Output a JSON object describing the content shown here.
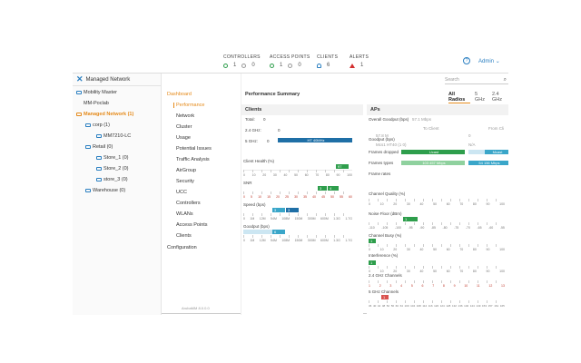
{
  "header": {
    "stats": [
      {
        "label": "CONTROLLERS",
        "ok": "1",
        "warn": "0"
      },
      {
        "label": "ACCESS POINTS",
        "ok": "1",
        "warn": "0"
      },
      {
        "label": "CLIENTS",
        "ok": "6"
      },
      {
        "label": "ALERTS",
        "ok": "1"
      }
    ],
    "help": "?",
    "user": "Admin"
  },
  "tree": {
    "title": "Managed Network",
    "nodes": [
      {
        "label": "Mobility Master"
      },
      {
        "label": "MM-Poclab"
      },
      {
        "label": "Managed Network (1)"
      },
      {
        "label": "corp (1)"
      },
      {
        "label": "MM7210-LC"
      },
      {
        "label": "Retail (0)"
      },
      {
        "label": "Store_1 (0)"
      },
      {
        "label": "Store_2 (0)"
      },
      {
        "label": "store_3 (0)"
      },
      {
        "label": "Warehouse (0)"
      }
    ]
  },
  "nav": {
    "root": "Dashboard",
    "items": [
      "Performance",
      "Network",
      "Cluster",
      "Usage",
      "Potential Issues",
      "Traffic Analysis",
      "AirGroup",
      "Security",
      "UCC",
      "Controllers",
      "WLANs",
      "Access Points",
      "Clients"
    ],
    "config": "Configuration",
    "version": "ArubaMM 8.0.0.0"
  },
  "main": {
    "search_placeholder": "Search",
    "title": "Performance Summary",
    "tabs": [
      "All Radios",
      "5 GHz",
      "2.4 GHz"
    ],
    "clients": {
      "title": "Clients",
      "total_label": "Total:",
      "total_value": "0",
      "band24_label": "2.4 GHz:",
      "band24_value": "0",
      "band5_label": "5 GHz:",
      "band5_value": "0",
      "band5_bar": "HT 40MHz",
      "health_label": "Client Health (%)",
      "health_bar": "97",
      "health_ticks": [
        "0",
        "10",
        "20",
        "30",
        "40",
        "50",
        "60",
        "70",
        "80",
        "90",
        "100"
      ],
      "snr_label": "SNR",
      "snr_bar_a": "3",
      "snr_bar_b": "4",
      "snr_ticks": [
        "0",
        "5",
        "10",
        "15",
        "20",
        "25",
        "30",
        "35",
        "40",
        "45",
        "50",
        "55",
        "60"
      ],
      "speed_label": "Speed (bps)",
      "speed_bar_a": "3",
      "speed_bar_b": "3",
      "speed_ticks": [
        "0",
        "1M",
        "12M",
        "54M",
        "108M",
        "150M",
        "300M",
        "600M",
        "1.3G",
        "1.7G"
      ],
      "goodput_label": "Goodput (bps)",
      "goodput_bar": "6",
      "goodput_ticks": [
        "0",
        "1M",
        "12M",
        "54M",
        "108M",
        "150M",
        "300M",
        "600M",
        "1.3G",
        "1.7G"
      ]
    },
    "aps": {
      "title": "APs",
      "overall_label": "Overall Goodput (bps)",
      "overall_value": "57.1 Mbps",
      "to_client": "To Client",
      "from_client": "From Cli",
      "goodput_label": "Goodput (bps)",
      "goodput_values": [
        "57.8 M",
        "0"
      ],
      "mcs_values": [
        "Mcs1 HT40 (1 0)",
        "N/A"
      ],
      "frames_dropped": "Frames dropped",
      "frames_types": "Frames types",
      "frames_rates": "Frame rates",
      "bar_unicast": "Ucast",
      "bar_mcast": "Mcast",
      "bar_rate": "103 457 Mbps",
      "bar_rate2": "54 156 Mbps",
      "channel_quality": "Channel Quality (%)",
      "cq_ticks": [
        "0",
        "10",
        "20",
        "30",
        "40",
        "50",
        "60",
        "70",
        "80",
        "90",
        "100"
      ],
      "noise_floor": "Noise Floor (dBm)",
      "noise_bar": "1",
      "noise_ticks": [
        "-110",
        "-105",
        "-100",
        "-95",
        "-90",
        "-85",
        "-80",
        "-75",
        "-70",
        "-65",
        "-60",
        "-55"
      ],
      "channel_busy": "Channel Busy (%)",
      "busy_bar": "1",
      "busy_ticks": [
        "0",
        "10",
        "20",
        "30",
        "40",
        "50",
        "60",
        "70",
        "80",
        "90",
        "100"
      ],
      "interference": "Interference (%)",
      "interf_bar": "1",
      "interf_ticks": [
        "0",
        "10",
        "20",
        "30",
        "40",
        "50",
        "60",
        "70",
        "80",
        "90",
        "100"
      ],
      "ch24": "2.4 GHz Channels",
      "ch24_ticks": [
        "1",
        "2",
        "3",
        "4",
        "5",
        "6",
        "7",
        "8",
        "9",
        "10",
        "11",
        "12",
        "13"
      ],
      "ch5": "5 GHz Channels",
      "ch5_ticks": [
        "36",
        "40",
        "44",
        "48",
        "52",
        "56",
        "60",
        "64",
        "100",
        "104",
        "108",
        "112",
        "116",
        "120",
        "124",
        "128",
        "132",
        "136",
        "140",
        "144",
        "149",
        "153",
        "157",
        "161",
        "165"
      ],
      "ch5_bar": "1"
    }
  },
  "colors": {
    "accent": "#e58a1a",
    "blue": "#2a7fc1",
    "green": "#2e9e4c",
    "teal": "#3aa6c9",
    "darkblue": "#1f6fa6"
  }
}
